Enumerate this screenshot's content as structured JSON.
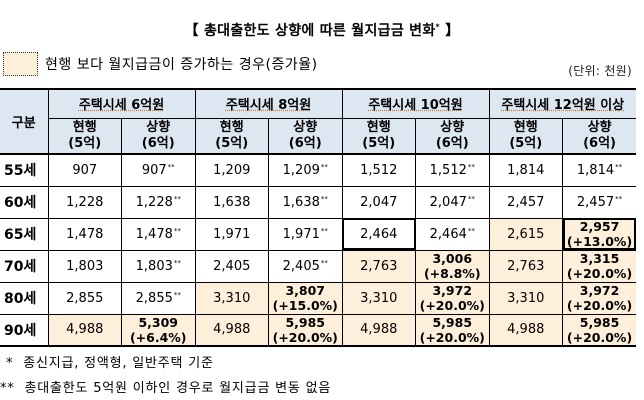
{
  "title": {
    "text": "【 총대출한도 상향에 따른 월지급금 변화",
    "sup": "*",
    "close": " 】"
  },
  "legend": {
    "text": "현행 보다 월지급금이 증가하는 경우(증가율)",
    "color": "#fdefd9"
  },
  "unit": "(단위: 천원)",
  "table": {
    "row_header": "구분",
    "groups": [
      "주택시세 6억원",
      "주택시세 8억원",
      "주택시세 10억원",
      "주택시세 12억원 이상"
    ],
    "sub_headers": [
      {
        "line1": "현행",
        "line2": "(5억)"
      },
      {
        "line1": "상향",
        "line2": "(6억)"
      }
    ],
    "rows": [
      {
        "label": "55세",
        "cells": [
          {
            "v": "907"
          },
          {
            "v": "907",
            "sup": "**"
          },
          {
            "v": "1,209"
          },
          {
            "v": "1,209",
            "sup": "**"
          },
          {
            "v": "1,512"
          },
          {
            "v": "1,512",
            "sup": "**"
          },
          {
            "v": "1,814"
          },
          {
            "v": "1,814",
            "sup": "**"
          }
        ]
      },
      {
        "label": "60세",
        "cells": [
          {
            "v": "1,228"
          },
          {
            "v": "1,228",
            "sup": "**"
          },
          {
            "v": "1,638"
          },
          {
            "v": "1,638",
            "sup": "**"
          },
          {
            "v": "2,047"
          },
          {
            "v": "2,047",
            "sup": "**"
          },
          {
            "v": "2,457"
          },
          {
            "v": "2,457",
            "sup": "**"
          }
        ]
      },
      {
        "label": "65세",
        "cells": [
          {
            "v": "1,478"
          },
          {
            "v": "1,478",
            "sup": "**"
          },
          {
            "v": "1,971"
          },
          {
            "v": "1,971",
            "sup": "**"
          },
          {
            "v": "2,464"
          },
          {
            "v": "2,464",
            "sup": "**"
          },
          {
            "v": "2,615"
          },
          {
            "v": "2,957",
            "pct": "(+13.0%)"
          }
        ]
      },
      {
        "label": "70세",
        "cells": [
          {
            "v": "1,803"
          },
          {
            "v": "1,803",
            "sup": "**"
          },
          {
            "v": "2,405"
          },
          {
            "v": "2,405",
            "sup": "**"
          },
          {
            "v": "2,763"
          },
          {
            "v": "3,006",
            "pct": "(+8.8%)"
          },
          {
            "v": "2,763"
          },
          {
            "v": "3,315",
            "pct": "(+20.0%)"
          }
        ]
      },
      {
        "label": "80세",
        "cells": [
          {
            "v": "2,855"
          },
          {
            "v": "2,855",
            "sup": "**"
          },
          {
            "v": "3,310"
          },
          {
            "v": "3,807",
            "pct": "(+15.0%)"
          },
          {
            "v": "3,310"
          },
          {
            "v": "3,972",
            "pct": "(+20.0%)"
          },
          {
            "v": "3,310"
          },
          {
            "v": "3,972",
            "pct": "(+20.0%)"
          }
        ]
      },
      {
        "label": "90세",
        "cells": [
          {
            "v": "4,988"
          },
          {
            "v": "5,309",
            "pct": "(+6.4%)"
          },
          {
            "v": "4,988"
          },
          {
            "v": "5,985",
            "pct": "(+20.0%)"
          },
          {
            "v": "4,988"
          },
          {
            "v": "5,985",
            "pct": "(+20.0%)"
          },
          {
            "v": "4,988"
          },
          {
            "v": "5,985",
            "pct": "(+20.0%)"
          }
        ]
      }
    ]
  },
  "footnotes": [
    {
      "mark": "*",
      "text": "종신지급, 정액형, 일반주택 기준"
    },
    {
      "mark": "**",
      "text": "총대출한도 5억원 이하인 경우로 월지급금 변동 없음"
    }
  ]
}
